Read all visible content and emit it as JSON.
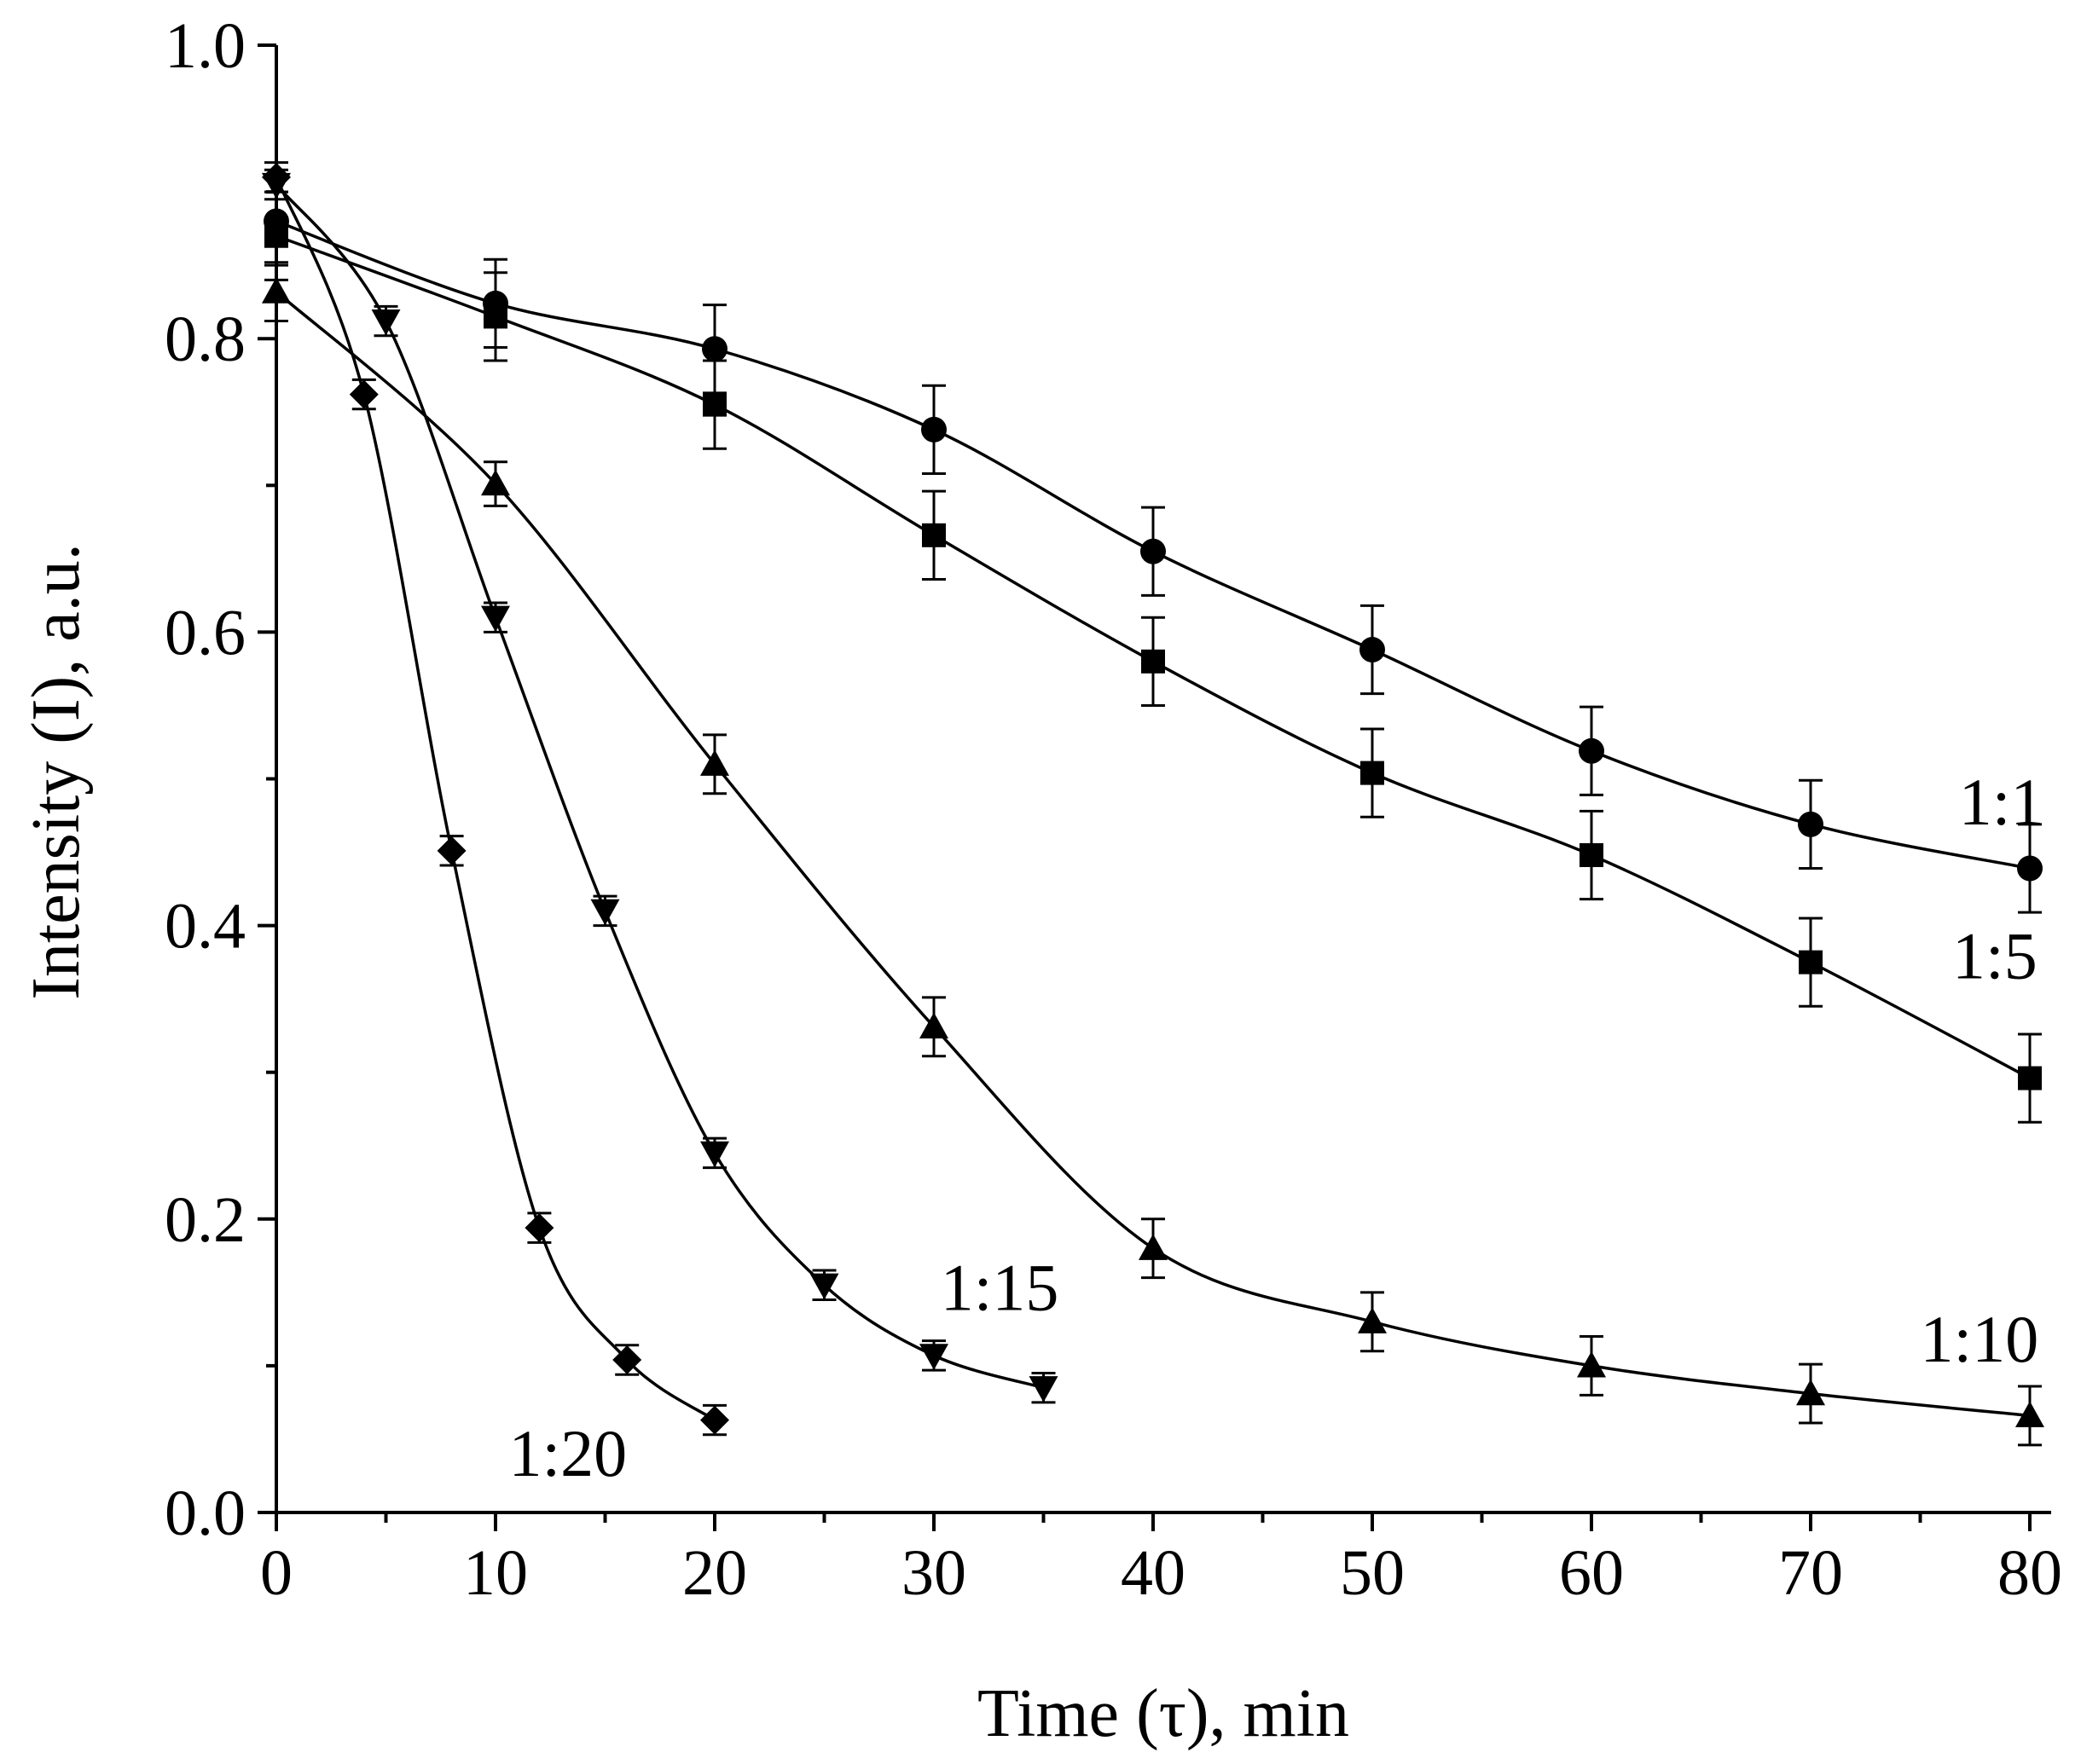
{
  "chart_data": {
    "type": "line",
    "title": "",
    "xlabel": "Time (τ), min",
    "ylabel": "Intensity (I), a.u.",
    "xlim": [
      0,
      80
    ],
    "ylim": [
      0,
      1.0
    ],
    "x_ticks": [
      "0",
      "10",
      "20",
      "30",
      "40",
      "50",
      "60",
      "70",
      "80"
    ],
    "y_ticks": [
      "0.0",
      "0.2",
      "0.4",
      "0.6",
      "0.8",
      "1.0"
    ],
    "grid": false,
    "legend": "inline labels",
    "series": [
      {
        "name": "1:1",
        "marker": "circle",
        "x": [
          0,
          10,
          20,
          30,
          40,
          50,
          60,
          70,
          80
        ],
        "y": [
          0.88,
          0.824,
          0.793,
          0.738,
          0.655,
          0.588,
          0.519,
          0.469,
          0.439
        ],
        "error": [
          0.03,
          0.03,
          0.03,
          0.03,
          0.03,
          0.03,
          0.03,
          0.03,
          0.03
        ]
      },
      {
        "name": "1:5",
        "marker": "square",
        "x": [
          0,
          10,
          20,
          30,
          40,
          50,
          60,
          70,
          80
        ],
        "y": [
          0.87,
          0.815,
          0.755,
          0.666,
          0.58,
          0.504,
          0.448,
          0.375,
          0.296
        ],
        "error": [
          0.03,
          0.03,
          0.03,
          0.03,
          0.03,
          0.03,
          0.03,
          0.03,
          0.03
        ]
      },
      {
        "name": "1:10",
        "marker": "triangle-up",
        "x": [
          0,
          10,
          20,
          30,
          40,
          50,
          60,
          70,
          80
        ],
        "y": [
          0.832,
          0.701,
          0.51,
          0.331,
          0.18,
          0.13,
          0.1,
          0.081,
          0.066
        ],
        "error": [
          0.02,
          0.015,
          0.02,
          0.02,
          0.02,
          0.02,
          0.02,
          0.02,
          0.02
        ]
      },
      {
        "name": "1:15",
        "marker": "triangle-down",
        "x": [
          0,
          5,
          10,
          15,
          20,
          25,
          30,
          35
        ],
        "y": [
          0.905,
          0.812,
          0.61,
          0.41,
          0.245,
          0.155,
          0.107,
          0.085
        ],
        "error": [
          0.01,
          0.01,
          0.01,
          0.01,
          0.01,
          0.01,
          0.01,
          0.01
        ]
      },
      {
        "name": "1:20",
        "marker": "diamond",
        "x": [
          0,
          4,
          8,
          12,
          16,
          20
        ],
        "y": [
          0.91,
          0.762,
          0.451,
          0.194,
          0.104,
          0.063
        ],
        "error": [
          0.01,
          0.01,
          0.01,
          0.01,
          0.01,
          0.01
        ]
      }
    ],
    "annotations": [
      {
        "text": "1:1",
        "x": 78.7,
        "y": 0.484
      },
      {
        "text": "1:5",
        "x": 78.4,
        "y": 0.379
      },
      {
        "text": "1:10",
        "x": 77.7,
        "y": 0.118
      },
      {
        "text": "1:15",
        "x": 33.0,
        "y": 0.153
      },
      {
        "text": "1:20",
        "x": 13.3,
        "y": 0.04
      }
    ]
  }
}
